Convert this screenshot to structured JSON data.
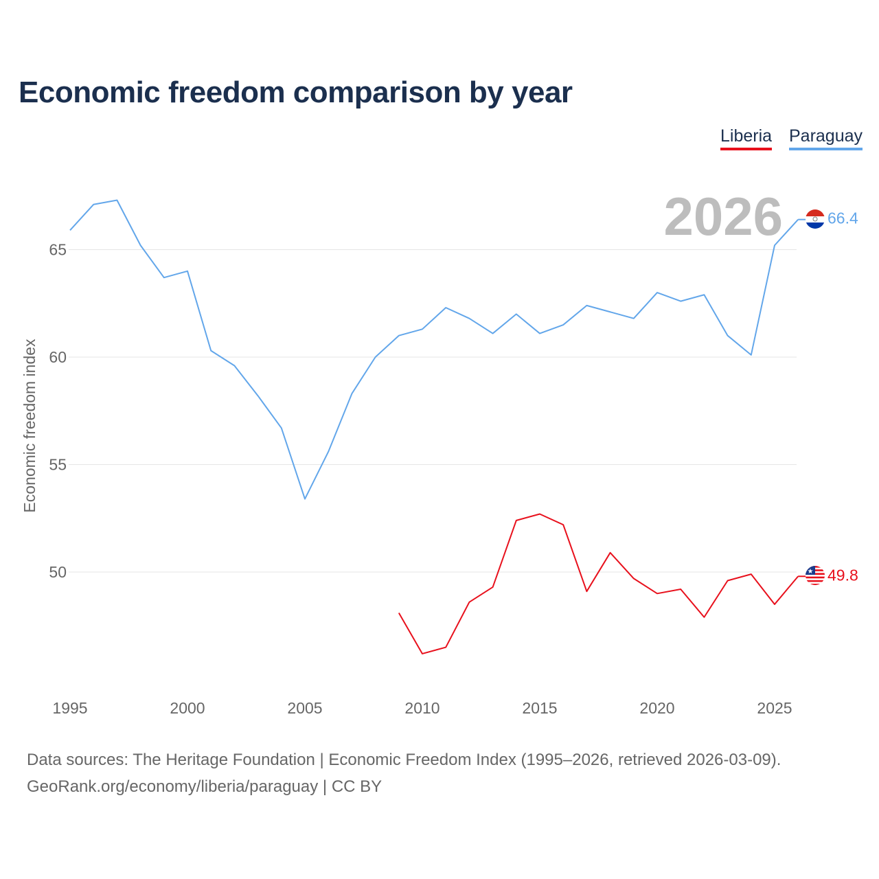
{
  "chart_data": {
    "type": "line",
    "title": "Economic freedom comparison by year",
    "xlabel": "",
    "ylabel": "Economic freedom index",
    "xlim": [
      1995,
      2026
    ],
    "ylim": [
      44.6,
      68.7
    ],
    "x_ticks": [
      "1995",
      "2000",
      "2005",
      "2010",
      "2015",
      "2020",
      "2025"
    ],
    "y_ticks": [
      "50",
      "55",
      "60",
      "65"
    ],
    "grid": true,
    "legend_position": "top-right",
    "year_label": "2026",
    "series": [
      {
        "name": "Liberia",
        "color": "#e8101c",
        "end_label": "49.8",
        "x": [
          2009,
          2010,
          2011,
          2012,
          2013,
          2014,
          2015,
          2016,
          2017,
          2018,
          2019,
          2020,
          2021,
          2022,
          2023,
          2024,
          2025,
          2026
        ],
        "values": [
          48.1,
          46.2,
          46.5,
          48.6,
          49.3,
          52.4,
          52.7,
          52.2,
          49.1,
          50.9,
          49.7,
          49.0,
          49.2,
          47.9,
          49.6,
          49.9,
          48.5,
          49.8
        ]
      },
      {
        "name": "Paraguay",
        "color": "#62a6ea",
        "end_label": "66.4",
        "x": [
          1995,
          1996,
          1997,
          1998,
          1999,
          2000,
          2001,
          2002,
          2003,
          2004,
          2005,
          2006,
          2007,
          2008,
          2009,
          2010,
          2011,
          2012,
          2013,
          2014,
          2015,
          2016,
          2017,
          2018,
          2019,
          2020,
          2021,
          2022,
          2023,
          2024,
          2025,
          2026
        ],
        "values": [
          65.9,
          67.1,
          67.3,
          65.2,
          63.7,
          64.0,
          60.3,
          59.6,
          58.2,
          56.7,
          53.4,
          55.6,
          58.3,
          60.0,
          61.0,
          61.3,
          62.3,
          61.8,
          61.1,
          62.0,
          61.1,
          61.5,
          62.4,
          62.1,
          61.8,
          63.0,
          62.6,
          62.9,
          61.0,
          60.1,
          65.2,
          66.4
        ]
      }
    ]
  },
  "source": {
    "line1": "Data sources: The Heritage Foundation | Economic Freedom Index (1995–2026, retrieved 2026-03-09).",
    "line2": "GeoRank.org/economy/liberia/paraguay | CC BY"
  }
}
